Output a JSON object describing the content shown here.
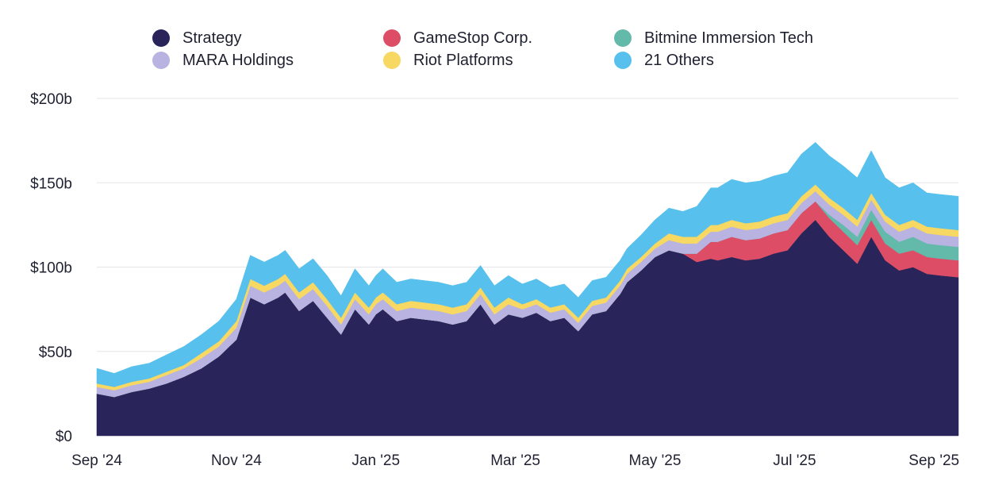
{
  "chart_data": {
    "type": "area",
    "stacked": true,
    "title": "",
    "xlabel": "",
    "ylabel": "",
    "ylim": [
      0,
      200
    ],
    "y_unit_prefix": "$",
    "y_unit_suffix": "b",
    "yticks": [
      {
        "value": 0,
        "label": "$0"
      },
      {
        "value": 50,
        "label": "$50b"
      },
      {
        "value": 100,
        "label": "$100b"
      },
      {
        "value": 150,
        "label": "$150b"
      },
      {
        "value": 200,
        "label": "$200b"
      }
    ],
    "xlim": [
      0,
      12.35
    ],
    "xticks": [
      {
        "value": 0,
        "label": "Sep '24"
      },
      {
        "value": 2,
        "label": "Nov '24"
      },
      {
        "value": 4,
        "label": "Jan '25"
      },
      {
        "value": 6,
        "label": "Mar '25"
      },
      {
        "value": 8,
        "label": "May '25"
      },
      {
        "value": 10,
        "label": "Jul '25"
      },
      {
        "value": 12,
        "label": "Sep '25"
      }
    ],
    "x_unit": "months since start of Sep 2024",
    "x": [
      0,
      0.25,
      0.5,
      0.75,
      1,
      1.25,
      1.5,
      1.75,
      2,
      2.2,
      2.4,
      2.6,
      2.7,
      2.9,
      3.1,
      3.3,
      3.5,
      3.7,
      3.9,
      4,
      4.1,
      4.3,
      4.5,
      4.7,
      4.9,
      5.1,
      5.3,
      5.5,
      5.7,
      5.9,
      6.1,
      6.3,
      6.5,
      6.7,
      6.9,
      7.1,
      7.3,
      7.5,
      7.6,
      7.8,
      8,
      8.2,
      8.4,
      8.6,
      8.8,
      8.9,
      9.1,
      9.3,
      9.5,
      9.7,
      9.9,
      10.1,
      10.3,
      10.5,
      10.7,
      10.9,
      11.1,
      11.3,
      11.5,
      11.7,
      11.9,
      12.1,
      12.35
    ],
    "series": [
      {
        "name": "Strategy",
        "color": "#29245a",
        "values": [
          25,
          23,
          26,
          28,
          31,
          35,
          40,
          47,
          57,
          82,
          78,
          82,
          85,
          74,
          80,
          70,
          60,
          75,
          66,
          72,
          75,
          68,
          70,
          69,
          68,
          66,
          68,
          78,
          66,
          72,
          70,
          73,
          68,
          70,
          62,
          72,
          74,
          84,
          91,
          98,
          106,
          110,
          108,
          103,
          105,
          104,
          106,
          104,
          105,
          108,
          110,
          120,
          128,
          118,
          110,
          102,
          118,
          104,
          98,
          100,
          96,
          95,
          94
        ]
      },
      {
        "name": "GameStop Corp.",
        "color": "#dd4d66",
        "values": [
          0,
          0,
          0,
          0,
          0,
          0,
          0,
          0,
          0,
          0,
          0,
          0,
          0,
          0,
          0,
          0,
          0,
          0,
          0,
          0,
          0,
          0,
          0,
          0,
          0,
          0,
          0,
          0,
          0,
          0,
          0,
          0,
          0,
          0,
          0,
          0,
          0,
          0,
          0,
          0,
          0,
          0,
          0,
          5,
          10,
          11,
          12,
          12,
          12,
          12,
          12,
          12,
          11,
          11,
          11,
          11,
          10,
          10,
          10,
          10,
          10,
          10,
          10
        ]
      },
      {
        "name": "Bitmine Immersion Tech",
        "color": "#63b9aa",
        "values": [
          0,
          0,
          0,
          0,
          0,
          0,
          0,
          0,
          0,
          0,
          0,
          0,
          0,
          0,
          0,
          0,
          0,
          0,
          0,
          0,
          0,
          0,
          0,
          0,
          0,
          0,
          0,
          0,
          0,
          0,
          0,
          0,
          0,
          0,
          0,
          0,
          0,
          0,
          0,
          0,
          0,
          0,
          0,
          0,
          0,
          0,
          0,
          0,
          0,
          0,
          0,
          0,
          0,
          2,
          4,
          5,
          6,
          7,
          7,
          8,
          8,
          8,
          8
        ]
      },
      {
        "name": "MARA Holdings",
        "color": "#b8b3e0",
        "values": [
          4,
          4,
          4,
          4,
          5,
          5,
          6,
          6,
          7,
          7,
          7,
          7,
          7,
          7,
          7,
          7,
          6,
          6,
          6,
          6,
          6,
          6,
          6,
          6,
          6,
          6,
          6,
          6,
          6,
          6,
          5,
          5,
          5,
          5,
          5,
          5,
          5,
          5,
          5,
          5,
          5,
          6,
          6,
          6,
          6,
          6,
          6,
          6,
          6,
          6,
          6,
          6,
          6,
          6,
          6,
          6,
          6,
          6,
          6,
          6,
          6,
          6,
          6
        ]
      },
      {
        "name": "Riot Platforms",
        "color": "#f7d862",
        "values": [
          2,
          2,
          2,
          2,
          2,
          2,
          3,
          3,
          4,
          4,
          4,
          4,
          4,
          4,
          4,
          4,
          4,
          4,
          4,
          4,
          4,
          4,
          4,
          4,
          4,
          4,
          4,
          4,
          4,
          4,
          3,
          3,
          3,
          3,
          3,
          3,
          3,
          3,
          3,
          3,
          3,
          4,
          4,
          4,
          4,
          4,
          4,
          4,
          4,
          4,
          4,
          4,
          4,
          4,
          4,
          4,
          4,
          4,
          4,
          4,
          4,
          4,
          4
        ]
      },
      {
        "name": "21 Others",
        "color": "#57c0ec",
        "values": [
          9,
          8,
          9,
          9,
          10,
          11,
          11,
          12,
          13,
          14,
          14,
          14,
          14,
          14,
          14,
          14,
          13,
          14,
          13,
          13,
          14,
          13,
          13,
          13,
          13,
          13,
          13,
          13,
          13,
          13,
          12,
          12,
          12,
          12,
          12,
          12,
          12,
          12,
          12,
          13,
          14,
          15,
          15,
          18,
          22,
          22,
          24,
          24,
          24,
          24,
          24,
          25,
          25,
          25,
          25,
          25,
          25,
          22,
          22,
          22,
          20,
          20,
          20
        ]
      }
    ],
    "legend": [
      {
        "name": "Strategy",
        "color": "#29245a"
      },
      {
        "name": "GameStop Corp.",
        "color": "#dd4d66"
      },
      {
        "name": "Bitmine Immersion Tech",
        "color": "#63b9aa"
      },
      {
        "name": "MARA Holdings",
        "color": "#b8b3e0"
      },
      {
        "name": "Riot Platforms",
        "color": "#f7d862"
      },
      {
        "name": "21 Others",
        "color": "#57c0ec"
      }
    ],
    "legend_position": "top",
    "grid": true
  }
}
